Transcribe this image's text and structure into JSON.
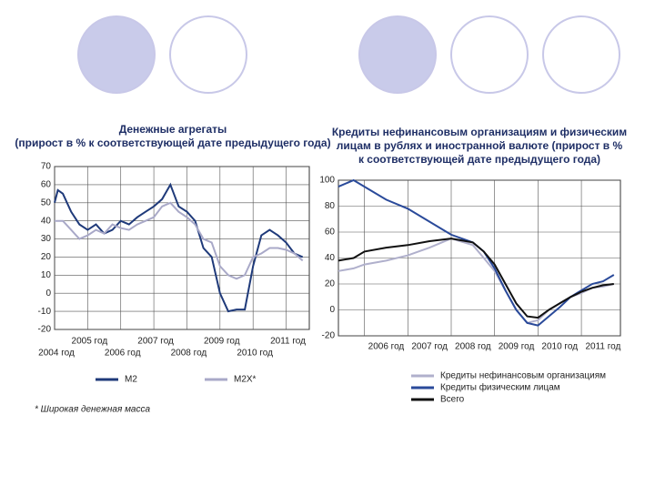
{
  "chart_data": [
    {
      "type": "line",
      "title": [
        "Денежные агрегаты",
        "(прирост в % к соответствующей дате предыдущего года)"
      ],
      "x": [
        2004,
        2004.1,
        2004.25,
        2004.5,
        2004.75,
        2005,
        2005.25,
        2005.5,
        2005.75,
        2006,
        2006.25,
        2006.5,
        2006.75,
        2007,
        2007.25,
        2007.5,
        2007.75,
        2008,
        2008.25,
        2008.5,
        2008.75,
        2009,
        2009.25,
        2009.5,
        2009.75,
        2010,
        2010.25,
        2010.5,
        2010.75,
        2011,
        2011.25,
        2011.5
      ],
      "series": [
        {
          "name": "M2",
          "color": "#1f3a7a",
          "values": [
            50,
            57,
            55,
            45,
            38,
            35,
            38,
            33,
            35,
            40,
            38,
            42,
            45,
            48,
            52,
            60,
            48,
            45,
            40,
            25,
            20,
            0,
            -10,
            -9,
            -9,
            15,
            32,
            35,
            32,
            28,
            22,
            20
          ]
        },
        {
          "name": "M2X*",
          "color": "#a9a9c8",
          "values": [
            40,
            40,
            40,
            35,
            30,
            32,
            35,
            33,
            38,
            36,
            35,
            38,
            40,
            42,
            48,
            50,
            45,
            42,
            38,
            30,
            28,
            15,
            10,
            8,
            10,
            20,
            22,
            25,
            25,
            24,
            22,
            18
          ]
        }
      ],
      "xlim": [
        2004,
        2011.7
      ],
      "xticks": [
        {
          "value": 2004,
          "label": "2004 год"
        },
        {
          "value": 2005,
          "label": "2005 год"
        },
        {
          "value": 2006,
          "label": "2006 год"
        },
        {
          "value": 2007,
          "label": "2007 год"
        },
        {
          "value": 2008,
          "label": "2008 год"
        },
        {
          "value": 2009,
          "label": "2009 год"
        },
        {
          "value": 2010,
          "label": "2010 год"
        },
        {
          "value": 2011,
          "label": "2011 год"
        }
      ],
      "ylim": [
        -20,
        70
      ],
      "yticks": [
        -20,
        -10,
        0,
        10,
        20,
        30,
        40,
        50,
        60,
        70
      ],
      "grid": true,
      "legend": "bottom",
      "note": "* Широкая денежная масса"
    },
    {
      "type": "line",
      "title": [
        "Кредиты нефинансовым организациям и физическим",
        "лицам в рублях и иностранной валюте (прирост в %",
        "к соответствующей дате предыдущего года)"
      ],
      "x": [
        2005.4,
        2005.75,
        2006,
        2006.5,
        2007,
        2007.5,
        2008,
        2008.5,
        2008.75,
        2009,
        2009.25,
        2009.5,
        2009.75,
        2010,
        2010.25,
        2010.5,
        2010.75,
        2011,
        2011.25,
        2011.5,
        2011.75
      ],
      "series": [
        {
          "name": "Кредиты нефинансовым организациям",
          "color": "#b0b0cc",
          "values": [
            30,
            32,
            35,
            38,
            42,
            48,
            55,
            50,
            40,
            30,
            15,
            0,
            -10,
            -8,
            0,
            5,
            10,
            13,
            17,
            18,
            20
          ]
        },
        {
          "name": "Кредиты физическим лицам",
          "color": "#2a4a9a",
          "values": [
            95,
            100,
            95,
            85,
            78,
            68,
            58,
            52,
            45,
            32,
            15,
            0,
            -10,
            -12,
            -5,
            2,
            10,
            15,
            20,
            22,
            27
          ]
        },
        {
          "name": "Всего",
          "color": "#111111",
          "values": [
            38,
            40,
            45,
            48,
            50,
            53,
            55,
            52,
            45,
            35,
            20,
            5,
            -5,
            -6,
            0,
            5,
            10,
            14,
            17,
            19,
            20
          ]
        }
      ],
      "xlim": [
        2005.4,
        2011.9
      ],
      "xticks": [
        {
          "value": 2006,
          "label": "2006 год"
        },
        {
          "value": 2007,
          "label": "2007 год"
        },
        {
          "value": 2008,
          "label": "2008 год"
        },
        {
          "value": 2009,
          "label": "2009 год"
        },
        {
          "value": 2010,
          "label": "2010 год"
        },
        {
          "value": 2011,
          "label": "2011 год"
        }
      ],
      "ylim": [
        -20,
        100
      ],
      "yticks": [
        -20,
        0,
        20,
        40,
        60,
        80,
        100
      ],
      "grid": true,
      "legend": "bottom-left"
    }
  ]
}
